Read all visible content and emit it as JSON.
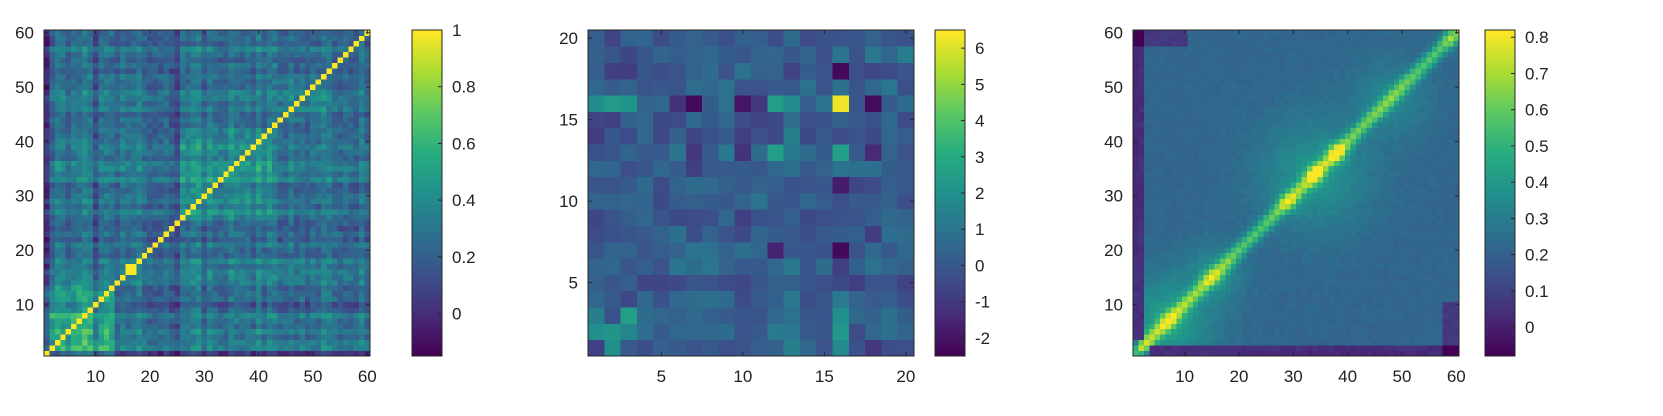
{
  "chart_data": [
    {
      "type": "heatmap",
      "title": "",
      "xlabel": "",
      "ylabel": "",
      "n": 60,
      "xlim": [
        0.5,
        60.5
      ],
      "ylim": [
        0.5,
        60.5
      ],
      "xticks": [
        10,
        20,
        30,
        40,
        50,
        60
      ],
      "yticks": [
        10,
        20,
        30,
        40,
        50,
        60
      ],
      "colorbar": {
        "min": -0.15,
        "max": 1.0,
        "ticks": [
          0,
          0.2,
          0.4,
          0.6,
          0.8,
          1
        ],
        "tick_labels": [
          "0",
          "0.2",
          "0.4",
          "0.6",
          "0.8",
          "1"
        ]
      },
      "colormap": "viridis",
      "blocks": [
        {
          "from": 1,
          "to": 13,
          "value": 0.55
        },
        {
          "from": 15,
          "to": 18,
          "value": 0.35
        },
        {
          "from": 26,
          "to": 42,
          "value": 0.42
        },
        {
          "from": 44,
          "to": 52,
          "value": 0.38
        }
      ],
      "diagonal_value": 1.0,
      "background_value": 0.25,
      "highlight_cells": [
        {
          "x": 16,
          "y": 17,
          "value": 1.0
        },
        {
          "x": 17,
          "y": 16,
          "value": 1.0
        }
      ]
    },
    {
      "type": "heatmap",
      "title": "",
      "xlabel": "",
      "ylabel": "",
      "n": 20,
      "xlim": [
        0.5,
        20.5
      ],
      "ylim": [
        0.5,
        20.5
      ],
      "xticks": [
        5,
        10,
        15,
        20
      ],
      "yticks": [
        5,
        10,
        15,
        20
      ],
      "colorbar": {
        "min": -2.5,
        "max": 6.5,
        "ticks": [
          -2,
          -1,
          0,
          1,
          2,
          3,
          4,
          5,
          6
        ],
        "tick_labels": [
          "-2",
          "-1",
          "0",
          "1",
          "2",
          "3",
          "4",
          "5",
          "6"
        ]
      },
      "colormap": "viridis",
      "background_value": 0.2,
      "cells": [
        {
          "x": 16,
          "y": 16,
          "value": 6.3
        },
        {
          "x": 16,
          "y": 18,
          "value": -2.3
        },
        {
          "x": 16,
          "y": 7,
          "value": -2.3
        },
        {
          "x": 16,
          "y": 11,
          "value": -1.8
        },
        {
          "x": 16,
          "y": 13,
          "value": 2.6
        },
        {
          "x": 16,
          "y": 2,
          "value": 2.3
        },
        {
          "x": 16,
          "y": 3,
          "value": 2.0
        },
        {
          "x": 16,
          "y": 1,
          "value": 1.8
        },
        {
          "x": 16,
          "y": 4,
          "value": 1.2
        },
        {
          "x": 16,
          "y": 6,
          "value": -0.8
        },
        {
          "x": 7,
          "y": 16,
          "value": -2.3
        },
        {
          "x": 10,
          "y": 16,
          "value": -2.0
        },
        {
          "x": 18,
          "y": 16,
          "value": -2.2
        },
        {
          "x": 2,
          "y": 16,
          "value": 2.4
        },
        {
          "x": 3,
          "y": 16,
          "value": 2.2
        },
        {
          "x": 1,
          "y": 16,
          "value": 1.8
        },
        {
          "x": 12,
          "y": 16,
          "value": 2.5
        },
        {
          "x": 13,
          "y": 16,
          "value": 1.8
        },
        {
          "x": 6,
          "y": 16,
          "value": -1.2
        },
        {
          "x": 11,
          "y": 16,
          "value": -1.0
        },
        {
          "x": 15,
          "y": 16,
          "value": 0.9
        },
        {
          "x": 12,
          "y": 13,
          "value": 2.6
        },
        {
          "x": 13,
          "y": 14,
          "value": 1.4
        },
        {
          "x": 10,
          "y": 13,
          "value": -1.2
        },
        {
          "x": 7,
          "y": 13,
          "value": -1.0
        },
        {
          "x": 18,
          "y": 13,
          "value": -1.4
        },
        {
          "x": 12,
          "y": 7,
          "value": -1.6
        },
        {
          "x": 7,
          "y": 12,
          "value": -0.8
        },
        {
          "x": 1,
          "y": 2,
          "value": 2.0
        },
        {
          "x": 2,
          "y": 1,
          "value": 2.0
        },
        {
          "x": 2,
          "y": 2,
          "value": 2.2
        },
        {
          "x": 3,
          "y": 3,
          "value": 2.6
        },
        {
          "x": 3,
          "y": 2,
          "value": 1.6
        },
        {
          "x": 1,
          "y": 3,
          "value": 1.4
        },
        {
          "x": 13,
          "y": 1,
          "value": 1.4
        },
        {
          "x": 12,
          "y": 2,
          "value": 1.2
        },
        {
          "x": 18,
          "y": 1,
          "value": -1.0
        },
        {
          "x": 18,
          "y": 8,
          "value": -0.9
        },
        {
          "x": 11,
          "y": 10,
          "value": 1.0
        },
        {
          "x": 7,
          "y": 7,
          "value": 1.0
        },
        {
          "x": 10,
          "y": 7,
          "value": 0.8
        },
        {
          "x": 20,
          "y": 19,
          "value": 1.3
        },
        {
          "x": 16,
          "y": 19,
          "value": 1.0
        },
        {
          "x": 18,
          "y": 19,
          "value": 1.1
        },
        {
          "x": 2,
          "y": 18,
          "value": -0.8
        },
        {
          "x": 3,
          "y": 18,
          "value": -0.9
        },
        {
          "x": 10,
          "y": 18,
          "value": 0.9
        },
        {
          "x": 13,
          "y": 18,
          "value": -0.7
        }
      ]
    },
    {
      "type": "heatmap",
      "title": "",
      "xlabel": "",
      "ylabel": "",
      "n": 60,
      "xlim": [
        0.5,
        60.5
      ],
      "ylim": [
        0.5,
        60.5
      ],
      "xticks": [
        10,
        20,
        30,
        40,
        50,
        60
      ],
      "yticks": [
        10,
        20,
        30,
        40,
        50,
        60
      ],
      "colorbar": {
        "min": -0.08,
        "max": 0.82,
        "ticks": [
          0,
          0.1,
          0.2,
          0.3,
          0.4,
          0.5,
          0.6,
          0.7,
          0.8
        ],
        "tick_labels": [
          "0",
          "0.1",
          "0.2",
          "0.3",
          "0.4",
          "0.5",
          "0.6",
          "0.7",
          "0.8"
        ]
      },
      "colormap": "viridis",
      "blocks": [
        {
          "from": 1,
          "to": 13,
          "value": 0.42
        },
        {
          "from": 14,
          "to": 18,
          "value": 0.35
        },
        {
          "from": 26,
          "to": 42,
          "value": 0.38
        },
        {
          "from": 44,
          "to": 52,
          "value": 0.33
        }
      ],
      "diagonal_value": 0.6,
      "background_value": 0.22,
      "hot_spots": [
        {
          "x": 38,
          "y": 38,
          "value": 0.82
        },
        {
          "x": 34,
          "y": 34,
          "value": 0.8
        },
        {
          "x": 29,
          "y": 29,
          "value": 0.75
        },
        {
          "x": 15,
          "y": 15,
          "value": 0.68
        },
        {
          "x": 7,
          "y": 7,
          "value": 0.68
        },
        {
          "x": 2,
          "y": 2,
          "value": 0.72
        },
        {
          "x": 59,
          "y": 59,
          "value": 0.7
        }
      ]
    }
  ]
}
